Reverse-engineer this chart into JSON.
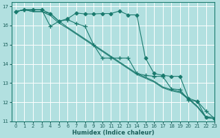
{
  "title": "",
  "xlabel": "Humidex (Indice chaleur)",
  "ylabel": "",
  "bg_color": "#b2e0e0",
  "grid_color": "#ffffff",
  "line_color": "#1a7a6e",
  "xlim": [
    -0.5,
    23
  ],
  "ylim": [
    11,
    17.2
  ],
  "xticks": [
    0,
    1,
    2,
    3,
    4,
    5,
    6,
    7,
    8,
    9,
    10,
    11,
    12,
    13,
    14,
    15,
    16,
    17,
    18,
    19,
    20,
    21,
    22,
    23
  ],
  "yticks": [
    11,
    12,
    13,
    14,
    15,
    16,
    17
  ],
  "series": [
    {
      "x": [
        0,
        1,
        2,
        3,
        4,
        5,
        6,
        7,
        8,
        9,
        10,
        11,
        12,
        13,
        14,
        15,
        16,
        17,
        18,
        19,
        20,
        21,
        22,
        23
      ],
      "y": [
        16.72,
        16.82,
        16.82,
        16.82,
        16.62,
        16.22,
        16.35,
        16.65,
        16.6,
        16.6,
        16.62,
        16.62,
        16.75,
        16.55,
        16.55,
        14.3,
        13.5,
        13.4,
        13.35,
        13.35,
        12.2,
        12.05,
        11.2,
        11.15
      ],
      "marker": "D",
      "markersize": 2.5
    },
    {
      "x": [
        0,
        1,
        2,
        3,
        4,
        5,
        6,
        7,
        8,
        9,
        10,
        11,
        12,
        13,
        14,
        15,
        16,
        17,
        18,
        19,
        20,
        21,
        22,
        23
      ],
      "y": [
        16.72,
        16.82,
        16.82,
        16.82,
        15.95,
        16.22,
        16.3,
        16.1,
        15.95,
        15.0,
        14.3,
        14.3,
        14.3,
        14.3,
        13.5,
        13.4,
        13.35,
        13.35,
        12.7,
        12.65,
        12.1,
        12.05,
        11.55,
        11.15
      ],
      "marker": "+",
      "markersize": 4
    },
    {
      "x": [
        0,
        1,
        2,
        3,
        4,
        5,
        6,
        7,
        8,
        9,
        10,
        11,
        12,
        13,
        14,
        15,
        16,
        17,
        18,
        19,
        20,
        21,
        22,
        23
      ],
      "y": [
        16.72,
        16.82,
        16.72,
        16.72,
        16.62,
        16.22,
        15.9,
        15.6,
        15.3,
        15.0,
        14.7,
        14.4,
        14.1,
        13.8,
        13.5,
        13.3,
        13.1,
        12.8,
        12.65,
        12.55,
        12.2,
        11.8,
        11.25,
        11.2
      ],
      "marker": null,
      "markersize": 0
    },
    {
      "x": [
        0,
        1,
        2,
        3,
        4,
        5,
        6,
        7,
        8,
        9,
        10,
        11,
        12,
        13,
        14,
        15,
        16,
        17,
        18,
        19,
        20,
        21,
        22,
        23
      ],
      "y": [
        16.72,
        16.82,
        16.72,
        16.72,
        16.52,
        16.12,
        15.85,
        15.55,
        15.25,
        14.95,
        14.65,
        14.35,
        14.05,
        13.75,
        13.45,
        13.25,
        13.05,
        12.75,
        12.6,
        12.5,
        12.15,
        11.75,
        11.2,
        11.15
      ],
      "marker": null,
      "markersize": 0
    }
  ]
}
